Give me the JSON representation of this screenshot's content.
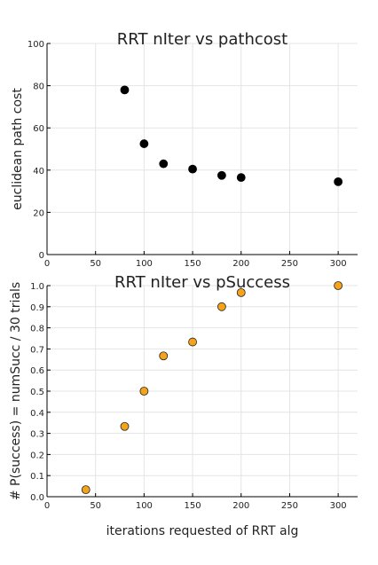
{
  "chart_data": [
    {
      "type": "scatter",
      "title": "RRT nIter vs pathcost",
      "xlabel": "",
      "ylabel": "euclidean path cost",
      "xlim": [
        0,
        320
      ],
      "ylim": [
        0,
        100
      ],
      "x_ticks": [
        0,
        50,
        100,
        150,
        200,
        250,
        300
      ],
      "y_ticks": [
        0,
        20,
        40,
        60,
        80,
        100
      ],
      "x_tick_labels": [
        "0",
        "50",
        "100",
        "150",
        "200",
        "250",
        "300"
      ],
      "y_tick_labels": [
        "0",
        "20",
        "40",
        "60",
        "80",
        "100"
      ],
      "grid": true,
      "marker_color": "#000000",
      "series": [
        {
          "x": [
            80,
            100,
            120,
            150,
            180,
            200,
            300
          ],
          "y": [
            78,
            52.5,
            43,
            40.5,
            37.5,
            36.5,
            34.5
          ]
        }
      ]
    },
    {
      "type": "scatter",
      "title": "RRT nIter vs pSuccess",
      "xlabel": "iterations requested of RRT alg",
      "ylabel": "# P(success) = numSucc / 30 trials",
      "xlim": [
        0,
        320
      ],
      "ylim": [
        0,
        1
      ],
      "x_ticks": [
        0,
        50,
        100,
        150,
        200,
        250,
        300
      ],
      "y_ticks": [
        0,
        0.1,
        0.2,
        0.3,
        0.4,
        0.5,
        0.6,
        0.7,
        0.8,
        0.9,
        1.0
      ],
      "x_tick_labels": [
        "0",
        "50",
        "100",
        "150",
        "200",
        "250",
        "300"
      ],
      "y_tick_labels": [
        "0.0",
        "0.1",
        "0.2",
        "0.3",
        "0.4",
        "0.5",
        "0.6",
        "0.7",
        "0.8",
        "0.9",
        "1.0"
      ],
      "grid": true,
      "marker_color": "#f5a31a",
      "series": [
        {
          "x": [
            40,
            80,
            100,
            120,
            150,
            180,
            200,
            300
          ],
          "y": [
            0.033,
            0.333,
            0.5,
            0.667,
            0.733,
            0.9,
            0.967,
            1.0
          ]
        }
      ]
    }
  ]
}
